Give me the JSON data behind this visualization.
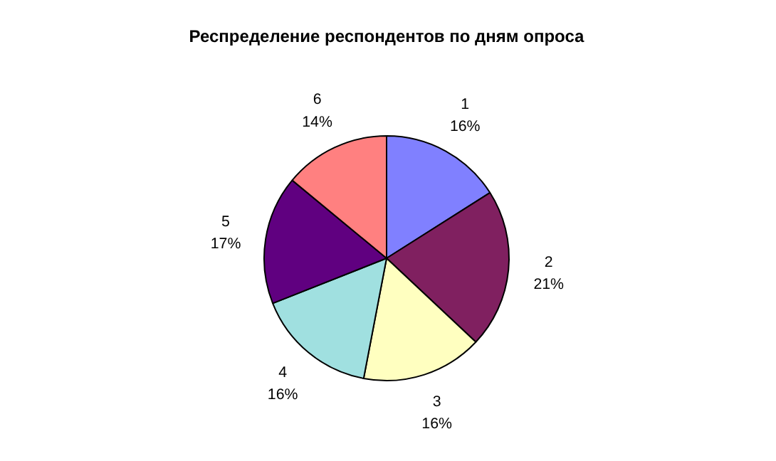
{
  "chart_data": {
    "type": "pie",
    "title": "Респределение респондентов по дням опроса",
    "categories": [
      "1",
      "2",
      "3",
      "4",
      "5",
      "6"
    ],
    "values": [
      16,
      21,
      16,
      16,
      17,
      14
    ],
    "colors": [
      "#8080ff",
      "#802060",
      "#ffffc0",
      "#a0e0e0",
      "#600080",
      "#ff8080"
    ],
    "value_labels": [
      "16%",
      "21%",
      "16%",
      "16%",
      "17%",
      "14%"
    ]
  }
}
